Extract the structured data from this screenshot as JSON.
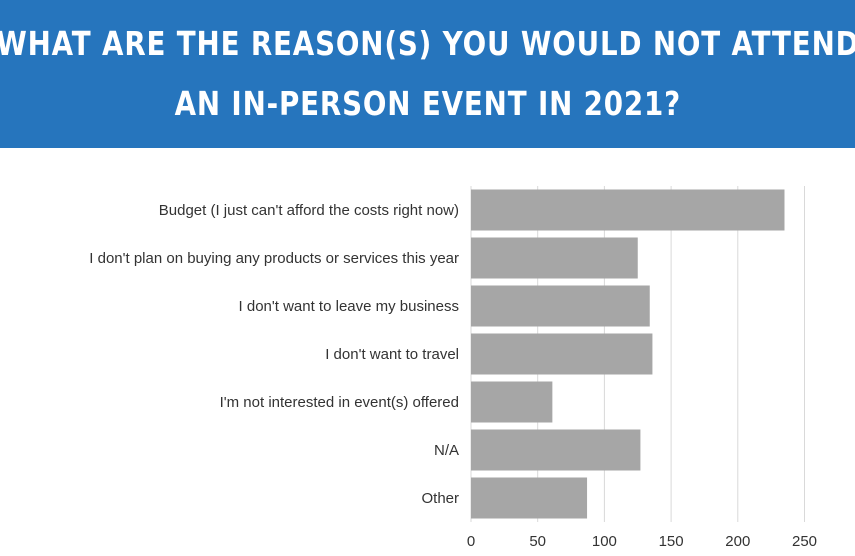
{
  "header": {
    "title_line1": "WHAT ARE THE REASON(S) YOU WOULD NOT ATTEND",
    "title_line2": "AN IN-PERSON EVENT IN 2021?",
    "background_color": "#2675bd"
  },
  "chart_data": {
    "type": "bar",
    "orientation": "horizontal",
    "categories": [
      "Budget (I just can't afford the costs right now)",
      "I don't plan on buying any products or services this year",
      "I don't want to leave my business",
      "I don't want to travel",
      "I'm not interested in event(s) offered",
      "N/A",
      "Other"
    ],
    "values": [
      235,
      125,
      134,
      136,
      61,
      127,
      87
    ],
    "xlim": [
      0,
      250
    ],
    "xticks": [
      0,
      50,
      100,
      150,
      200,
      250
    ],
    "grid": true,
    "bar_color": "#a6a6a6",
    "grid_color": "#d9d9d9"
  }
}
